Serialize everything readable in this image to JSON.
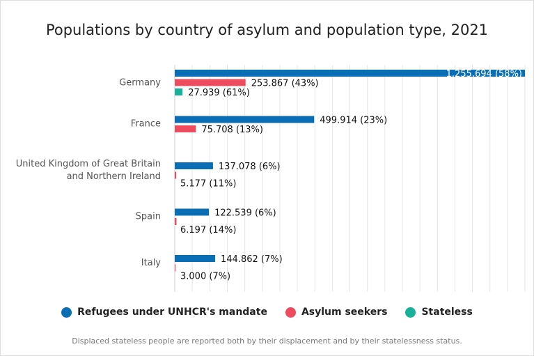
{
  "chart_data": {
    "type": "bar",
    "orientation": "horizontal",
    "title": "Populations by country of asylum and population type, 2021",
    "categories": [
      [
        "Germany"
      ],
      [
        "France"
      ],
      [
        "United Kingdom of Great Britain",
        "and Northern Ireland"
      ],
      [
        "Spain"
      ],
      [
        "Italy"
      ]
    ],
    "xlim": [
      0,
      1255694
    ],
    "grid": true,
    "legend_position": "bottom",
    "series": [
      {
        "name": "Refugees under UNHCR's mandate",
        "color": "#0a6eb4",
        "values": [
          1255694,
          499914,
          137078,
          122539,
          144862
        ],
        "labels": [
          "1.255.694 (58%)",
          "499.914 (23%)",
          "137.078 (6%)",
          "122.539 (6%)",
          "144.862 (7%)"
        ]
      },
      {
        "name": "Asylum seekers",
        "color": "#ef4b5e",
        "values": [
          253867,
          75708,
          5177,
          6197,
          3000
        ],
        "labels": [
          "253.867 (43%)",
          "75.708 (13%)",
          "5.177 (11%)",
          "6.197 (14%)",
          "3.000 (7%)"
        ]
      },
      {
        "name": "Stateless",
        "color": "#18b09a",
        "values": [
          27939,
          null,
          null,
          null,
          null
        ],
        "labels": [
          "27.939 (61%)",
          null,
          null,
          null,
          null
        ]
      }
    ]
  },
  "legend": {
    "items": [
      {
        "label": "Refugees under UNHCR's mandate",
        "color": "#0a6eb4"
      },
      {
        "label": "Asylum seekers",
        "color": "#ef4b5e"
      },
      {
        "label": "Stateless",
        "color": "#18b09a"
      }
    ]
  },
  "footnote": "Displaced stateless people are reported both by their displacement and by their statelessness status."
}
